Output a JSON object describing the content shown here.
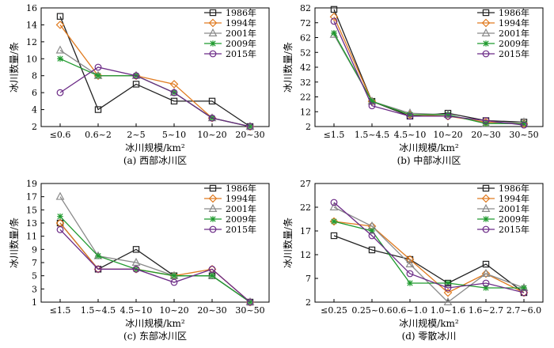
{
  "series_style": [
    {
      "name": "1986年",
      "color": "#222222",
      "marker": "square"
    },
    {
      "name": "1994年",
      "color": "#e07b20",
      "marker": "diamond"
    },
    {
      "name": "2001年",
      "color": "#8a8a8a",
      "marker": "triangle"
    },
    {
      "name": "2009年",
      "color": "#1f9a2e",
      "marker": "star"
    },
    {
      "name": "2015年",
      "color": "#6b2a86",
      "marker": "circle"
    }
  ],
  "chart_data": [
    {
      "type": "line",
      "title": "(a) 西部冰川区",
      "xlabel": "冰川规模/km²",
      "ylabel": "冰川数量/条",
      "categories": [
        "≤0.6",
        "0.6~2",
        "2~5",
        "5~10",
        "10~20",
        "20~30"
      ],
      "ylim": [
        2,
        16
      ],
      "yticks": [
        2,
        4,
        6,
        8,
        10,
        12,
        14,
        16
      ],
      "legend": "top-right",
      "series": [
        {
          "name": "1986年",
          "values": [
            15,
            4,
            7,
            5,
            5,
            2
          ]
        },
        {
          "name": "1994年",
          "values": [
            14,
            8,
            8,
            7,
            3,
            2
          ]
        },
        {
          "name": "2001年",
          "values": [
            11,
            8,
            8,
            6,
            3,
            2
          ]
        },
        {
          "name": "2009年",
          "values": [
            10,
            8,
            8,
            6,
            3,
            2
          ]
        },
        {
          "name": "2015年",
          "values": [
            6,
            9,
            8,
            6,
            3,
            2
          ]
        }
      ]
    },
    {
      "type": "line",
      "title": "(b) 中部冰川区",
      "xlabel": "冰川规模/km²",
      "ylabel": "冰川数量/条",
      "categories": [
        "≤1.5",
        "1.5~4.5",
        "4.5~10",
        "10~20",
        "20~30",
        "30~50"
      ],
      "ylim": [
        2,
        82
      ],
      "yticks": [
        2,
        12,
        22,
        32,
        42,
        52,
        62,
        72,
        82
      ],
      "legend": "top-right",
      "series": [
        {
          "name": "1986年",
          "values": [
            81,
            19,
            9,
            11,
            6,
            5
          ]
        },
        {
          "name": "1994年",
          "values": [
            76,
            19,
            10,
            9,
            5,
            4
          ]
        },
        {
          "name": "2001年",
          "values": [
            64,
            19,
            11,
            10,
            4,
            5
          ]
        },
        {
          "name": "2009年",
          "values": [
            65,
            19,
            10,
            10,
            4,
            4
          ]
        },
        {
          "name": "2015年",
          "values": [
            73,
            16,
            9,
            9,
            6,
            3
          ]
        }
      ]
    },
    {
      "type": "line",
      "title": "(c) 东部冰川区",
      "xlabel": "冰川规模/km²",
      "ylabel": "冰川数量/条",
      "categories": [
        "≤1.5",
        "1.5~4.5",
        "4.5~10",
        "10~20",
        "20~30",
        "30~50"
      ],
      "ylim": [
        1,
        19
      ],
      "yticks": [
        1,
        3,
        5,
        7,
        9,
        11,
        13,
        15,
        17,
        19
      ],
      "legend": "top-right",
      "series": [
        {
          "name": "1986年",
          "values": [
            13,
            6,
            9,
            5,
            5,
            1
          ]
        },
        {
          "name": "1994年",
          "values": [
            13,
            6,
            6,
            5,
            6,
            1
          ]
        },
        {
          "name": "2001年",
          "values": [
            17,
            8,
            7,
            5,
            5,
            1
          ]
        },
        {
          "name": "2009年",
          "values": [
            14,
            8,
            6,
            5,
            5,
            1
          ]
        },
        {
          "name": "2015年",
          "values": [
            12,
            6,
            6,
            4,
            6,
            1
          ]
        }
      ]
    },
    {
      "type": "line",
      "title": "(d) 零散冰川",
      "xlabel": "冰川规模/km²",
      "ylabel": "冰川数量/条",
      "categories": [
        "≤0.25",
        "0.25~0.6",
        "0.6~1.0",
        "1.0~1.6",
        "1.6~2.7",
        "2.7~6.0"
      ],
      "ylim": [
        2,
        27
      ],
      "yticks": [
        2,
        7,
        12,
        17,
        22,
        27
      ],
      "legend": "top-right",
      "series": [
        {
          "name": "1986年",
          "values": [
            16,
            13,
            11,
            6,
            10,
            4
          ]
        },
        {
          "name": "1994年",
          "values": [
            19,
            18,
            11,
            4,
            8,
            4
          ]
        },
        {
          "name": "2001年",
          "values": [
            22,
            18,
            10,
            2,
            8,
            5
          ]
        },
        {
          "name": "2009年",
          "values": [
            19,
            17,
            6,
            6,
            5,
            5
          ]
        },
        {
          "name": "2015年",
          "values": [
            23,
            16,
            8,
            5,
            6,
            4
          ]
        }
      ]
    }
  ]
}
